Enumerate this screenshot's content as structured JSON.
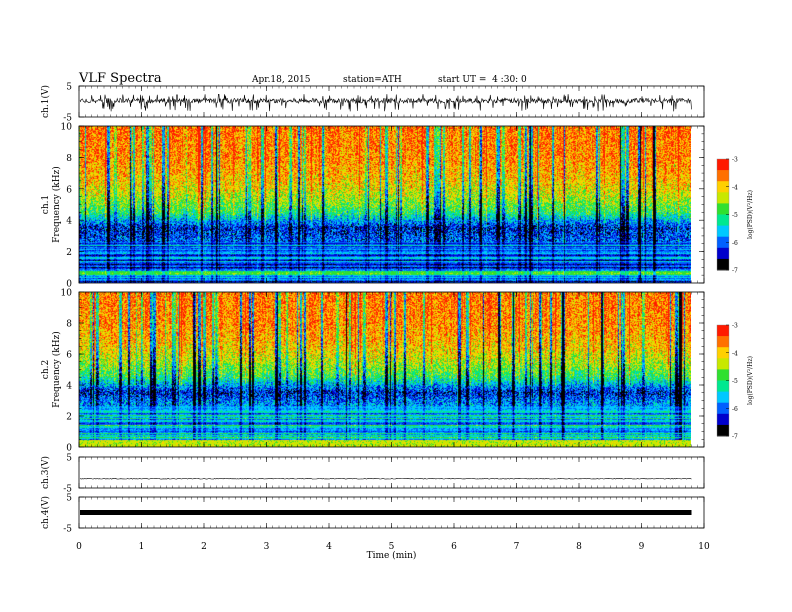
{
  "header": {
    "title": "VLF Spectra",
    "date": "Apr.18, 2015",
    "station": "station=ATH",
    "start": "start UT =  4 :30: 0"
  },
  "colors": {
    "spectrogram_scale": [
      "#000000",
      "#0000cc",
      "#0060ff",
      "#00c8ff",
      "#00e890",
      "#30e030",
      "#c8e800",
      "#ffd000",
      "#ff7000",
      "#ff1a00",
      "#ffffff"
    ]
  },
  "chart_data": [
    {
      "type": "line",
      "name": "ch1-waveform",
      "ylabel": "ch.1(V)",
      "ylim": [
        -5,
        5
      ],
      "y_ticks": [
        "5",
        "-5"
      ],
      "description_level": "noisy waveform around 0 V with spikes to about -3 V",
      "xlim": [
        0,
        10
      ],
      "data_end_min": 9.8
    },
    {
      "type": "heatmap",
      "name": "ch1-spectrogram",
      "ylabel": "ch.1\nFrequency (kHz)",
      "ylim": [
        0,
        10
      ],
      "y_ticks": [
        "0",
        "2",
        "4",
        "6",
        "8",
        "10"
      ],
      "zlabel": "log(PSD)(V²/Hz)",
      "zlim": [
        -7,
        -3
      ],
      "z_ticks": [
        "-3",
        "-4",
        "-5",
        "-6",
        "-7"
      ],
      "profile_by_frequency_khz": [
        [
          0.0,
          -6.5
        ],
        [
          0.5,
          -5.2
        ],
        [
          1.0,
          -6.0
        ],
        [
          2.0,
          -5.9
        ],
        [
          3.0,
          -6.1
        ],
        [
          3.5,
          -6.3
        ],
        [
          4.5,
          -5.0
        ],
        [
          5.5,
          -4.4
        ],
        [
          6.5,
          -4.0
        ],
        [
          8.0,
          -3.7
        ],
        [
          10.0,
          -3.6
        ]
      ]
    },
    {
      "type": "heatmap",
      "name": "ch2-spectrogram",
      "ylabel": "ch.2\nFrequency (kHz)",
      "ylim": [
        0,
        10
      ],
      "y_ticks": [
        "0",
        "2",
        "4",
        "6",
        "8",
        "10"
      ],
      "zlabel": "log(PSD)(V²/Hz)",
      "zlim": [
        -7,
        -3
      ],
      "z_ticks": [
        "-3",
        "-4",
        "-5",
        "-6",
        "-7"
      ],
      "profile_by_frequency_khz": [
        [
          0.0,
          -4.6
        ],
        [
          0.5,
          -5.3
        ],
        [
          1.0,
          -5.4
        ],
        [
          2.0,
          -5.5
        ],
        [
          3.0,
          -5.9
        ],
        [
          3.5,
          -6.3
        ],
        [
          4.5,
          -5.0
        ],
        [
          5.5,
          -4.4
        ],
        [
          6.5,
          -4.0
        ],
        [
          8.0,
          -3.7
        ],
        [
          10.0,
          -3.6
        ]
      ]
    },
    {
      "type": "line",
      "name": "ch3-waveform",
      "ylabel": "ch.3(V)",
      "ylim": [
        -5,
        5
      ],
      "y_ticks": [
        "5",
        "-5"
      ],
      "level_v": -2,
      "xlim": [
        0,
        10
      ]
    },
    {
      "type": "line",
      "name": "ch4-waveform",
      "ylabel": "ch.4(V)",
      "ylim": [
        -5,
        5
      ],
      "y_ticks": [
        "5",
        "-5"
      ],
      "level_v": 0,
      "xlim": [
        0,
        10
      ]
    }
  ],
  "x_axis": {
    "label": "Time (min)",
    "ticks": [
      "0",
      "1",
      "2",
      "3",
      "4",
      "5",
      "6",
      "7",
      "8",
      "9",
      "10"
    ],
    "xlim": [
      0,
      10
    ]
  }
}
